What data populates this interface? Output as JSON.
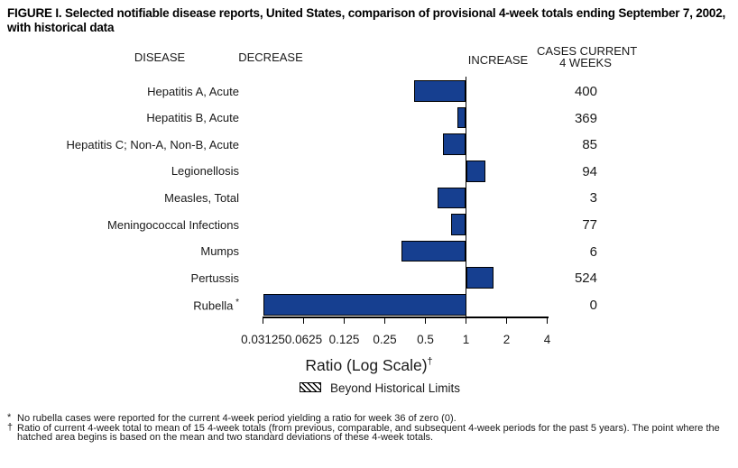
{
  "title": "FIGURE I. Selected notifiable disease reports, United States, comparison of provisional 4-week totals ending September 7, 2002, with historical data",
  "headers": {
    "disease": "DISEASE",
    "decrease": "DECREASE",
    "increase": "INCREASE",
    "cases_line1": "CASES CURRENT",
    "cases_line2": "4 WEEKS"
  },
  "chart_data": {
    "type": "bar",
    "orientation": "horizontal",
    "scale": "log2",
    "baseline": 1,
    "xlim": [
      0.03125,
      4
    ],
    "xlabel": "Ratio (Log Scale)",
    "xlabel_superscript": "†",
    "axis_ticks": [
      0.03125,
      0.0625,
      0.125,
      0.25,
      0.5,
      1,
      2,
      4
    ],
    "axis_tick_labels": [
      "0.03125",
      "0.0625",
      "0.125",
      "0.25",
      "0.5",
      "1",
      "2",
      "4"
    ],
    "bar_color": "#163f90",
    "rows": [
      {
        "disease": "Hepatitis A, Acute",
        "ratio": 0.41,
        "cases": "400"
      },
      {
        "disease": "Hepatitis B, Acute",
        "ratio": 0.86,
        "cases": "369"
      },
      {
        "disease": "Hepatitis C; Non-A, Non-B, Acute",
        "ratio": 0.68,
        "cases": "85"
      },
      {
        "disease": "Legionellosis",
        "ratio": 1.4,
        "cases": "94"
      },
      {
        "disease": "Measles, Total",
        "ratio": 0.62,
        "cases": "3"
      },
      {
        "disease": "Meningococcal Infections",
        "ratio": 0.78,
        "cases": "77"
      },
      {
        "disease": "Mumps",
        "ratio": 0.33,
        "cases": "6"
      },
      {
        "disease": "Pertussis",
        "ratio": 1.61,
        "cases": "524"
      },
      {
        "disease": "Rubella",
        "superscript": "*",
        "ratio": 0,
        "cases": "0"
      }
    ],
    "legend": {
      "swatch": "diagonal-hatch",
      "label": "Beyond Historical Limits"
    }
  },
  "footnotes": [
    {
      "marker": "*",
      "text": "No rubella cases were reported for the current 4-week period yielding a ratio for week 36 of zero (0)."
    },
    {
      "marker": "†",
      "text": "Ratio of current 4-week total to mean of 15 4-week totals (from previous, comparable, and subsequent 4-week periods for the past 5 years). The point where the hatched area begins is based on the mean and two standard deviations of these 4-week totals."
    }
  ]
}
